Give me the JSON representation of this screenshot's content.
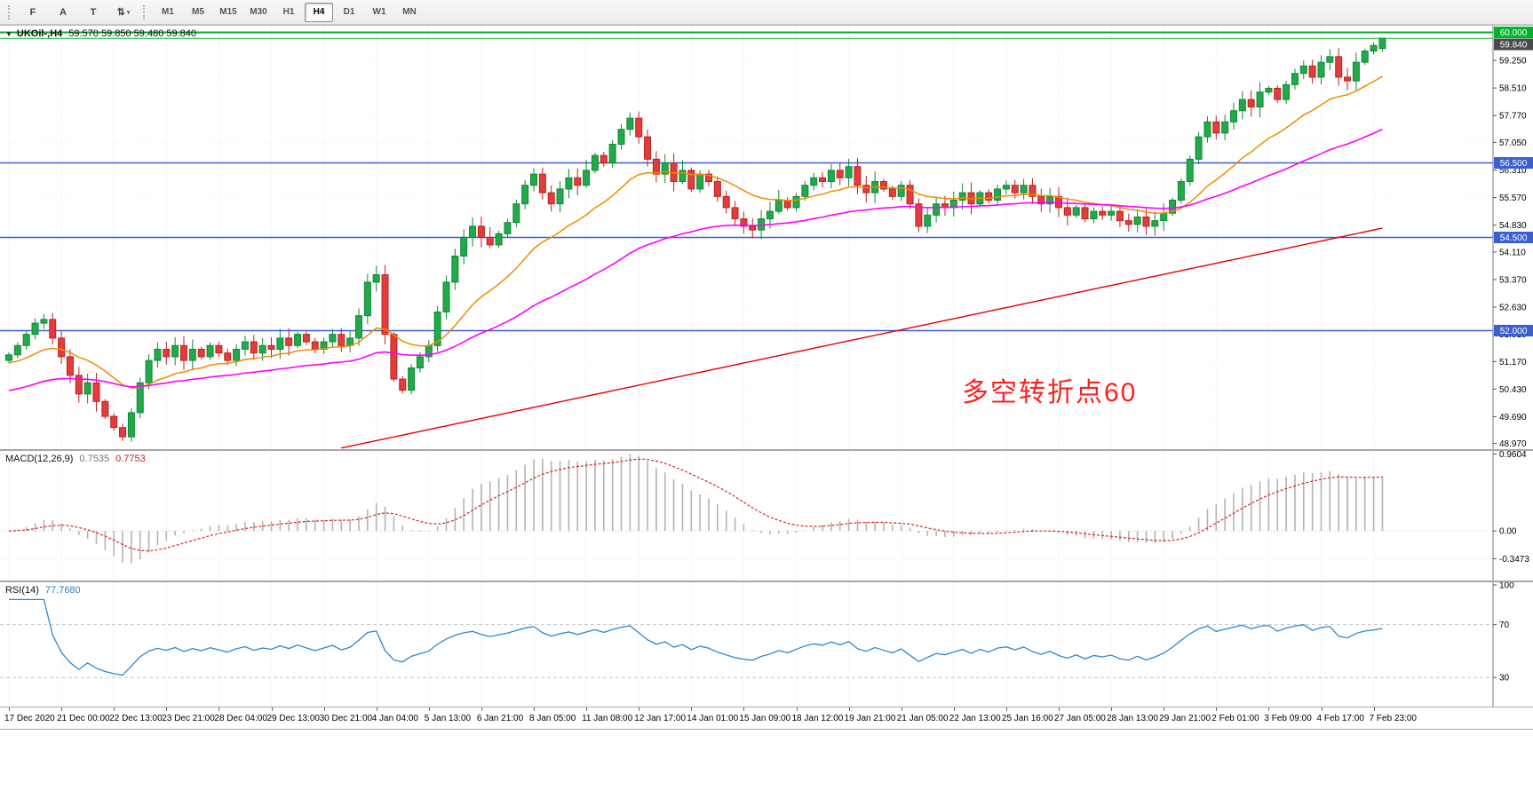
{
  "toolbar": {
    "tool_buttons": [
      {
        "id": "f",
        "label": "F"
      },
      {
        "id": "arrow-text-a",
        "label": "A"
      },
      {
        "id": "text-label",
        "label": "T"
      },
      {
        "id": "timeframe-arrows",
        "label": "⇅",
        "caret": "▾"
      }
    ],
    "timeframes": [
      "M1",
      "M5",
      "M15",
      "M30",
      "H1",
      "H4",
      "D1",
      "W1",
      "MN"
    ],
    "active_timeframe": "H4"
  },
  "chart": {
    "menu_arrow_icon": "▼",
    "symbol_label": "UKOil-,H4",
    "ohlc_text": "59.570 59.850 59.480 59.840",
    "annotation": {
      "text": "多空转折点60",
      "color": "#ff1f1f"
    },
    "price_axis": {
      "tick_labels": [
        "59.250",
        "58.510",
        "57.770",
        "57.050",
        "56.310",
        "55.570",
        "54.830",
        "54.110",
        "53.370",
        "52.630",
        "51.910",
        "51.170",
        "50.430",
        "49.690",
        "48.970"
      ],
      "tick_values": [
        59.25,
        58.51,
        57.77,
        57.05,
        56.31,
        55.57,
        54.83,
        54.11,
        53.37,
        52.63,
        51.91,
        51.17,
        50.43,
        49.69,
        48.97
      ],
      "badges": [
        {
          "label": "60.000",
          "value": 60.0,
          "bg": "#00b22d",
          "fg": "#ffffff"
        },
        {
          "label": "59.840",
          "value": 59.84,
          "bg": "#4a4a4a",
          "fg": "#ffffff"
        },
        {
          "label": "56.500",
          "value": 56.5,
          "bg": "#3a5fd0",
          "fg": "#ffffff"
        },
        {
          "label": "54.500",
          "value": 54.5,
          "bg": "#3a5fd0",
          "fg": "#ffffff"
        },
        {
          "label": "52.000",
          "value": 52.0,
          "bg": "#3a5fd0",
          "fg": "#ffffff"
        }
      ]
    }
  },
  "chart_data": {
    "type": "candlestick",
    "symbol": "UKOil",
    "timeframe": "H4",
    "ylim": [
      48.82,
      60.18
    ],
    "first_open": 51.2,
    "candles_per_x_label": 6,
    "x_labels": [
      "17 Dec 2020",
      "21 Dec 00:00",
      "22 Dec 13:00",
      "23 Dec 21:00",
      "28 Dec 04:00",
      "29 Dec 13:00",
      "30 Dec 21:00",
      "4 Jan 04:00",
      "5 Jan 13:00",
      "6 Jan 21:00",
      "8 Jan 05:00",
      "11 Jan 08:00",
      "12 Jan 17:00",
      "14 Jan 01:00",
      "15 Jan 09:00",
      "18 Jan 12:00",
      "19 Jan 21:00",
      "21 Jan 05:00",
      "22 Jan 13:00",
      "25 Jan 16:00",
      "27 Jan 05:00",
      "28 Jan 13:00",
      "29 Jan 21:00",
      "2 Feb 01:00",
      "3 Feb 09:00",
      "4 Feb 17:00",
      "7 Feb 23:00"
    ],
    "closes": [
      51.35,
      51.6,
      51.9,
      52.2,
      52.3,
      51.8,
      51.3,
      50.8,
      50.3,
      50.6,
      50.1,
      49.7,
      49.4,
      49.15,
      49.8,
      50.6,
      51.2,
      51.5,
      51.3,
      51.6,
      51.2,
      51.5,
      51.3,
      51.6,
      51.4,
      51.2,
      51.5,
      51.7,
      51.4,
      51.6,
      51.5,
      51.8,
      51.6,
      51.9,
      51.7,
      51.5,
      51.7,
      51.9,
      51.6,
      51.8,
      52.4,
      53.3,
      53.5,
      51.9,
      50.7,
      50.4,
      51.0,
      51.3,
      51.6,
      52.5,
      53.3,
      54.0,
      54.5,
      54.8,
      54.5,
      54.3,
      54.6,
      54.9,
      55.4,
      55.9,
      56.2,
      55.7,
      55.4,
      55.8,
      56.1,
      55.9,
      56.3,
      56.7,
      56.5,
      57.0,
      57.4,
      57.7,
      57.2,
      56.6,
      56.2,
      56.5,
      56.0,
      56.3,
      55.8,
      56.2,
      56.0,
      55.6,
      55.3,
      55.0,
      54.8,
      54.7,
      55.0,
      55.2,
      55.5,
      55.3,
      55.6,
      55.9,
      56.1,
      56.0,
      56.3,
      56.1,
      56.4,
      55.9,
      55.7,
      56.0,
      55.8,
      55.6,
      55.9,
      55.4,
      54.8,
      55.1,
      55.4,
      55.3,
      55.5,
      55.7,
      55.4,
      55.7,
      55.5,
      55.8,
      55.9,
      55.7,
      55.9,
      55.6,
      55.4,
      55.6,
      55.3,
      55.1,
      55.3,
      55.0,
      55.2,
      55.1,
      55.2,
      54.95,
      54.85,
      55.05,
      54.8,
      54.95,
      55.15,
      55.5,
      56.0,
      56.6,
      57.2,
      57.6,
      57.3,
      57.6,
      57.9,
      58.2,
      58.0,
      58.4,
      58.5,
      58.2,
      58.6,
      58.9,
      59.1,
      58.8,
      59.2,
      59.35,
      58.8,
      58.7,
      59.2,
      59.5,
      59.65,
      59.84
    ],
    "last_candle": {
      "open": 59.57,
      "high": 59.85,
      "low": 59.48,
      "close": 59.84
    },
    "current_price": 59.84,
    "levels": [
      {
        "value": 60.0,
        "color": "#00b22d",
        "width": 2
      },
      {
        "value": 59.84,
        "color": "#00b22d",
        "width": 1
      },
      {
        "value": 56.5,
        "color": "#3a5fd0",
        "width": 1.5
      },
      {
        "value": 54.5,
        "color": "#3a5fd0",
        "width": 1.5
      },
      {
        "value": 52.0,
        "color": "#3a5fd0",
        "width": 1.5
      }
    ],
    "moving_averages": [
      {
        "name": "ma-fast-orange",
        "color": "#f08c00",
        "period": 16,
        "seed": 51.1,
        "width": 1.5
      },
      {
        "name": "ma-mid-magenta",
        "color": "#ff00ff",
        "period": 48,
        "seed": 50.35,
        "width": 1.6
      },
      {
        "name": "ma-long-red",
        "color": "#e60000",
        "type": "linear",
        "start_index": 38,
        "start_value": 48.85,
        "end_value": 54.75,
        "width": 1.4
      }
    ],
    "candle_colors": {
      "bull": "#22a949",
      "bull_border": "#118738",
      "bear": "#e33c3c",
      "bear_border": "#bb2222"
    }
  },
  "macd": {
    "label": "MACD(12,26,9)",
    "value": "0.7535",
    "signal": "0.7753",
    "params": [
      12,
      26,
      9
    ],
    "ylim": [
      -0.62,
      1.0
    ],
    "axis_ticks": [
      {
        "label": "0.9604",
        "value": 0.9604
      },
      {
        "label": "0.00",
        "value": 0
      },
      {
        "label": "-0.3473",
        "value": -0.3473
      }
    ],
    "histogram_color": "#b3b3b3",
    "signal_color": "#dd2222"
  },
  "rsi": {
    "label": "RSI(14)",
    "value": "77.7680",
    "period": 14,
    "ylim": [
      8,
      102
    ],
    "levels": [
      70,
      30
    ],
    "axis_ticks": [
      {
        "label": "100",
        "value": 100
      },
      {
        "label": "70",
        "value": 70
      },
      {
        "label": "30",
        "value": 30
      }
    ],
    "line_color": "#2f87cf"
  }
}
